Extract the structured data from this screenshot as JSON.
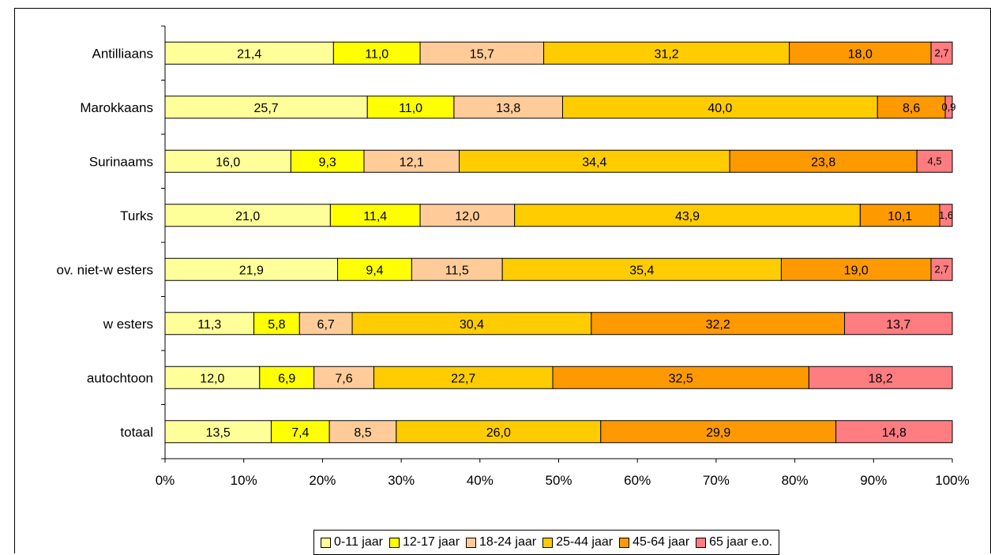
{
  "chart_data": {
    "type": "bar",
    "orientation": "horizontal",
    "stacked": "percent",
    "categories": [
      "Antilliaans",
      "Marokkaans",
      "Surinaams",
      "Turks",
      "ov. niet-w esters",
      "w esters",
      "autochtoon",
      "totaal"
    ],
    "series": [
      {
        "name": "0-11 jaar",
        "color": "#ffff99",
        "values": [
          21.4,
          25.7,
          16.0,
          21.0,
          21.9,
          11.3,
          12.0,
          13.5
        ],
        "labels": [
          "21,4",
          "25,7",
          "16,0",
          "21,0",
          "21,9",
          "11,3",
          "12,0",
          "13,5"
        ]
      },
      {
        "name": "12-17 jaar",
        "color": "#ffff00",
        "values": [
          11.0,
          11.0,
          9.3,
          11.4,
          9.4,
          5.8,
          6.9,
          7.4
        ],
        "labels": [
          "11,0",
          "11,0",
          "9,3",
          "11,4",
          "9,4",
          "5,8",
          "6,9",
          "7,4"
        ]
      },
      {
        "name": "18-24 jaar",
        "color": "#ffcc99",
        "values": [
          15.7,
          13.8,
          12.1,
          12.0,
          11.5,
          6.7,
          7.6,
          8.5
        ],
        "labels": [
          "15,7",
          "13,8",
          "12,1",
          "12,0",
          "11,5",
          "6,7",
          "7,6",
          "8,5"
        ]
      },
      {
        "name": "25-44 jaar",
        "color": "#ffcc00",
        "values": [
          31.2,
          40.0,
          34.4,
          43.9,
          35.4,
          30.4,
          22.7,
          26.0
        ],
        "labels": [
          "31,2",
          "40,0",
          "34,4",
          "43,9",
          "35,4",
          "30,4",
          "22,7",
          "26,0"
        ]
      },
      {
        "name": "45-64 jaar",
        "color": "#ff9900",
        "values": [
          18.0,
          8.6,
          23.8,
          10.1,
          19.0,
          32.2,
          32.5,
          29.9
        ],
        "labels": [
          "18,0",
          "8,6",
          "23,8",
          "10,1",
          "19,0",
          "32,2",
          "32,5",
          "29,9"
        ]
      },
      {
        "name": "65 jaar e.o.",
        "color": "#ff7c80",
        "values": [
          2.7,
          0.9,
          4.5,
          1.6,
          2.7,
          13.7,
          18.2,
          14.8
        ],
        "labels": [
          "2,7",
          "0,9",
          "4,5",
          "1,6",
          "2,7",
          "13,7",
          "18,2",
          "14,8"
        ]
      }
    ],
    "x_ticks": [
      "0%",
      "10%",
      "20%",
      "30%",
      "40%",
      "50%",
      "60%",
      "70%",
      "80%",
      "90%",
      "100%"
    ],
    "xlim": [
      0,
      100
    ],
    "grid": false,
    "legend_position": "bottom",
    "title": "",
    "xlabel": "",
    "ylabel": ""
  }
}
